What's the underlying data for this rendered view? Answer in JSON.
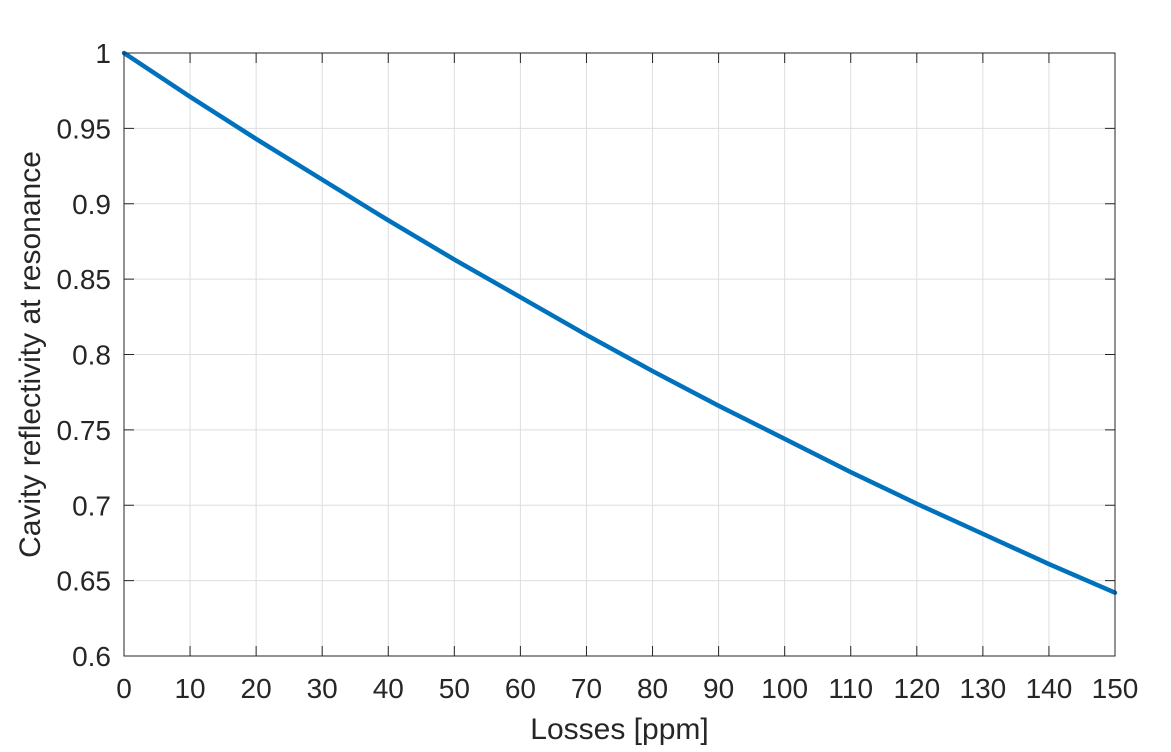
{
  "chart_data": {
    "type": "line",
    "title": "",
    "xlabel": "Losses [ppm]",
    "ylabel": "Cavity reflectivity at resonance",
    "xlim": [
      0,
      150
    ],
    "ylim": [
      0.6,
      1
    ],
    "x_ticks": [
      0,
      10,
      20,
      30,
      40,
      50,
      60,
      70,
      80,
      90,
      100,
      110,
      120,
      130,
      140,
      150
    ],
    "y_ticks": [
      0.6,
      0.65,
      0.7,
      0.75,
      0.8,
      0.85,
      0.9,
      0.95,
      1
    ],
    "x_tick_labels": [
      "0",
      "10",
      "20",
      "30",
      "40",
      "50",
      "60",
      "70",
      "80",
      "90",
      "100",
      "110",
      "120",
      "130",
      "140",
      "150"
    ],
    "y_tick_labels": [
      "0.6",
      "0.65",
      "0.7",
      "0.75",
      "0.8",
      "0.85",
      "0.9",
      "0.95",
      "1"
    ],
    "grid": true,
    "series": [
      {
        "color": "#0072BD",
        "x": [
          0,
          10,
          20,
          30,
          40,
          50,
          60,
          70,
          80,
          90,
          100,
          110,
          120,
          130,
          140,
          150
        ],
        "y": [
          1.0,
          0.971,
          0.943,
          0.916,
          0.889,
          0.863,
          0.838,
          0.813,
          0.789,
          0.766,
          0.744,
          0.722,
          0.701,
          0.681,
          0.661,
          0.642
        ]
      }
    ]
  }
}
